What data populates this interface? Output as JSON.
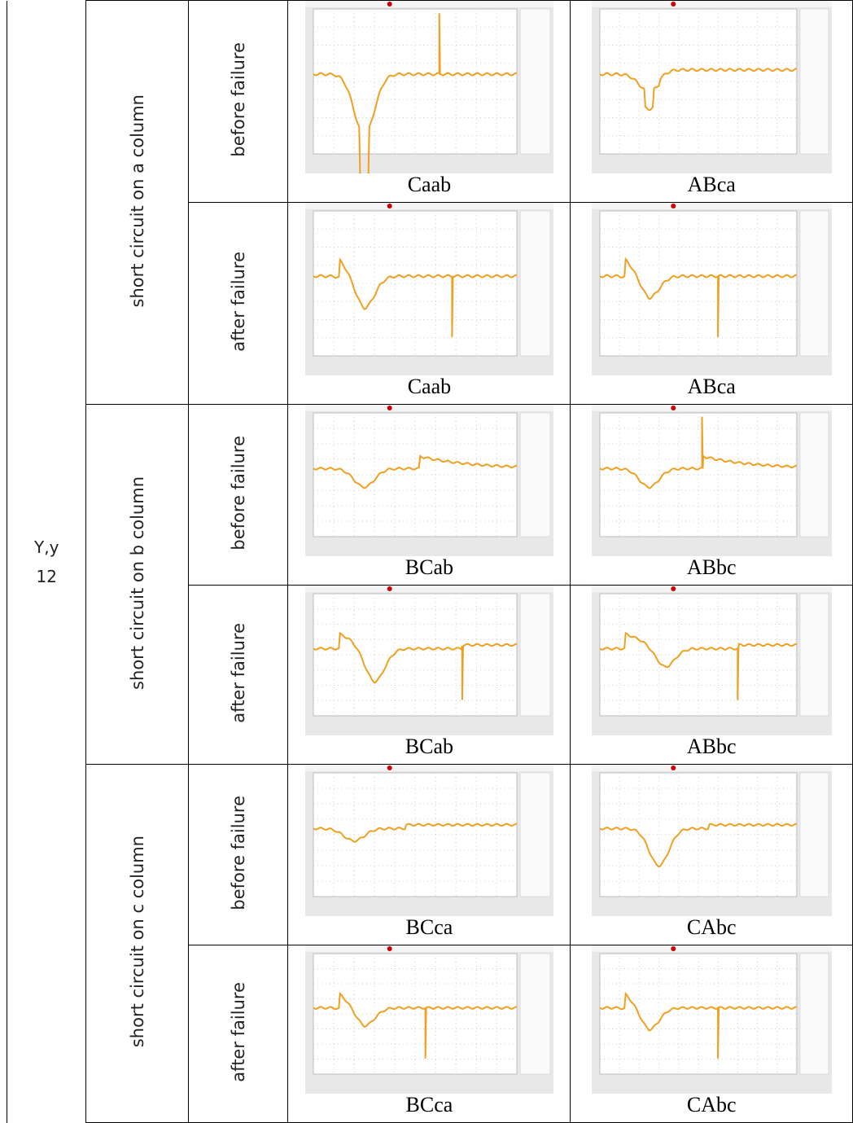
{
  "table": {
    "connection": {
      "label": "Y,y",
      "number": "12"
    },
    "groups": [
      {
        "label": "short circuit on a column",
        "rows": [
          {
            "label": "before failure",
            "cells": [
              {
                "caption": "Caab"
              },
              {
                "caption": "ABca"
              }
            ]
          },
          {
            "label": "after failure",
            "cells": [
              {
                "caption": "Caab"
              },
              {
                "caption": "ABca"
              }
            ]
          }
        ]
      },
      {
        "label": "short circuit on b column",
        "rows": [
          {
            "label": "before failure",
            "cells": [
              {
                "caption": "BCab"
              },
              {
                "caption": "ABbc"
              }
            ]
          },
          {
            "label": "after failure",
            "cells": [
              {
                "caption": "BCab"
              },
              {
                "caption": "ABbc"
              }
            ]
          }
        ]
      },
      {
        "label": "short circuit on c column",
        "rows": [
          {
            "label": "before failure",
            "cells": [
              {
                "caption": "BCca"
              },
              {
                "caption": "CAbc"
              }
            ]
          },
          {
            "label": "after failure",
            "cells": [
              {
                "caption": "BCca"
              },
              {
                "caption": "CAbc"
              }
            ]
          }
        ]
      }
    ]
  }
}
